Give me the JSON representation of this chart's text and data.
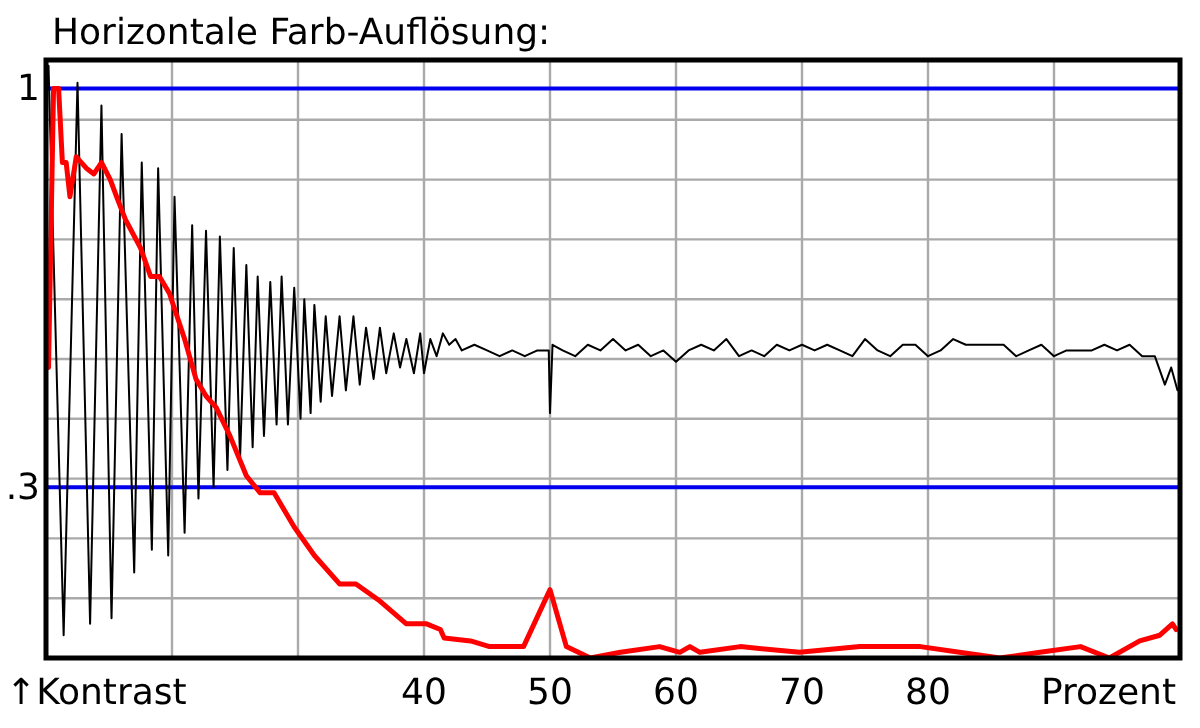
{
  "chart_data": {
    "type": "line",
    "title": "Horizontale Farb-Auflösung:",
    "xlabel": "Prozent",
    "ylabel": "↑Kontrast",
    "xlim": [
      10,
      100
    ],
    "ylim": [
      0,
      1.05
    ],
    "xticks": [
      {
        "value": 20,
        "label": null
      },
      {
        "value": 30,
        "label": null
      },
      40,
      50,
      60,
      70,
      80,
      {
        "value": 90,
        "label": null
      }
    ],
    "yticks": [
      {
        "value": 0.105,
        "label": null
      },
      {
        "value": 0.21,
        "label": null
      },
      {
        "value": 0.315,
        "label": null
      },
      {
        "value": 0.42,
        "label": null
      },
      {
        "value": 0.525,
        "label": null
      },
      {
        "value": 0.63,
        "label": null
      },
      {
        "value": 0.735,
        "label": null
      },
      {
        "value": 0.84,
        "label": null
      },
      {
        "value": 0.945,
        "label": null
      }
    ],
    "grid": true,
    "ref_lines": [
      {
        "axis": "y",
        "value": 1,
        "label": "1",
        "color": "#0000ee"
      },
      {
        "axis": "y",
        "value": 0.3,
        "label": ".3",
        "color": "#0000ee"
      }
    ],
    "series": [
      {
        "color": "#000000",
        "x": [
          10.2,
          11.4,
          12.5,
          13.5,
          14.4,
          15.2,
          16.0,
          17.0,
          17.6,
          18.4,
          18.9,
          19.7,
          20.2,
          21.0,
          21.6,
          22.1,
          22.7,
          23.3,
          23.8,
          24.4,
          24.9,
          25.4,
          25.9,
          26.4,
          26.8,
          27.3,
          27.8,
          28.3,
          28.7,
          29.2,
          29.7,
          30.2,
          30.5,
          31.0,
          31.3,
          31.8,
          32.2,
          32.7,
          33.3,
          33.8,
          34.4,
          34.9,
          35.4,
          36.0,
          36.5,
          37.0,
          37.6,
          38.1,
          38.6,
          39.2,
          39.7,
          40.0,
          40.5,
          41.0,
          41.5,
          42.0,
          42.5,
          43.0,
          44.0,
          45.0,
          46.0,
          47.0,
          48.0,
          49.0,
          49.9,
          50.0,
          50.2,
          51.0,
          52.0,
          53.0,
          54.0,
          55.0,
          56.0,
          57.0,
          58.0,
          59.0,
          60.0,
          61.0,
          62.0,
          63.0,
          64.0,
          65.0,
          66.0,
          67.0,
          68.0,
          69.0,
          70.0,
          71.0,
          72.0,
          73.0,
          74.0,
          75.0,
          76.0,
          77.0,
          78.0,
          79.0,
          80.0,
          81.0,
          82.0,
          83.0,
          84.0,
          85.0,
          86.0,
          87.0,
          88.0,
          89.0,
          90.0,
          91.0,
          92.0,
          93.0,
          94.0,
          95.0,
          96.0,
          97.0,
          98.0,
          98.8,
          99.3,
          99.8
        ],
        "values": [
          1.04,
          0.04,
          1.01,
          0.06,
          0.97,
          0.07,
          0.92,
          0.15,
          0.87,
          0.19,
          0.86,
          0.18,
          0.81,
          0.22,
          0.76,
          0.28,
          0.75,
          0.3,
          0.74,
          0.33,
          0.72,
          0.35,
          0.69,
          0.37,
          0.67,
          0.39,
          0.66,
          0.41,
          0.67,
          0.41,
          0.65,
          0.42,
          0.63,
          0.43,
          0.62,
          0.45,
          0.6,
          0.46,
          0.6,
          0.47,
          0.6,
          0.48,
          0.58,
          0.49,
          0.58,
          0.5,
          0.57,
          0.51,
          0.56,
          0.5,
          0.57,
          0.5,
          0.56,
          0.53,
          0.57,
          0.55,
          0.56,
          0.54,
          0.55,
          0.54,
          0.53,
          0.54,
          0.53,
          0.54,
          0.54,
          0.43,
          0.55,
          0.54,
          0.53,
          0.55,
          0.54,
          0.56,
          0.54,
          0.55,
          0.53,
          0.54,
          0.52,
          0.54,
          0.55,
          0.54,
          0.56,
          0.53,
          0.54,
          0.53,
          0.55,
          0.54,
          0.55,
          0.54,
          0.55,
          0.54,
          0.53,
          0.56,
          0.54,
          0.53,
          0.55,
          0.55,
          0.53,
          0.54,
          0.56,
          0.55,
          0.55,
          0.55,
          0.55,
          0.53,
          0.54,
          0.55,
          0.53,
          0.54,
          0.54,
          0.54,
          0.55,
          0.54,
          0.55,
          0.53,
          0.53,
          0.48,
          0.51,
          0.47
        ]
      },
      {
        "color": "#ff0000",
        "x": [
          10.2,
          10.6,
          11.0,
          11.3,
          11.6,
          11.9,
          12.4,
          13.2,
          13.8,
          14.4,
          15.1,
          15.6,
          16.3,
          17.5,
          18.3,
          19.0,
          19.8,
          21.0,
          21.9,
          22.7,
          23.5,
          24.6,
          25.9,
          27.0,
          28.1,
          29.7,
          31.3,
          33.3,
          34.6,
          36.5,
          38.6,
          40.2,
          41.3,
          41.6,
          43.7,
          45.2,
          47.9,
          50.0,
          51.3,
          53.2,
          55.6,
          58.7,
          60.3,
          61.1,
          61.9,
          65.1,
          69.8,
          74.6,
          79.4,
          82.5,
          85.7,
          88.9,
          92.1,
          94.4,
          96.8,
          98.4,
          99.4,
          99.7
        ],
        "values": [
          0.51,
          1.0,
          1.0,
          0.87,
          0.87,
          0.81,
          0.88,
          0.86,
          0.85,
          0.87,
          0.84,
          0.81,
          0.77,
          0.72,
          0.67,
          0.67,
          0.64,
          0.56,
          0.49,
          0.46,
          0.44,
          0.39,
          0.32,
          0.29,
          0.29,
          0.23,
          0.18,
          0.13,
          0.13,
          0.1,
          0.06,
          0.06,
          0.05,
          0.035,
          0.03,
          0.02,
          0.02,
          0.12,
          0.02,
          0.0,
          0.01,
          0.02,
          0.01,
          0.02,
          0.01,
          0.02,
          0.01,
          0.02,
          0.02,
          0.01,
          0.0,
          0.01,
          0.02,
          0.0,
          0.03,
          0.04,
          0.06,
          0.05
        ]
      }
    ]
  }
}
